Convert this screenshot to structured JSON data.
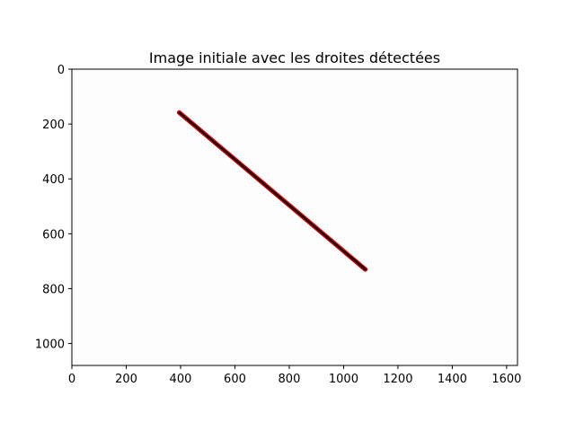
{
  "chart_data": {
    "type": "line",
    "title": "Image initiale avec les droites détectées",
    "xlabel": "",
    "ylabel": "",
    "xlim": [
      0,
      1640
    ],
    "ylim": [
      1080,
      0
    ],
    "y_axis_inverted": true,
    "grid": false,
    "legend": "none",
    "x_ticks": [
      0,
      200,
      400,
      600,
      800,
      1000,
      1200,
      1400,
      1600
    ],
    "y_ticks": [
      0,
      200,
      400,
      600,
      800,
      1000
    ],
    "series": [
      {
        "x": [
          395,
          1080
        ],
        "y": [
          158,
          730
        ],
        "color": "#000000",
        "outline_color": "#cc0000"
      }
    ],
    "background_color": "#fdfdfd"
  }
}
